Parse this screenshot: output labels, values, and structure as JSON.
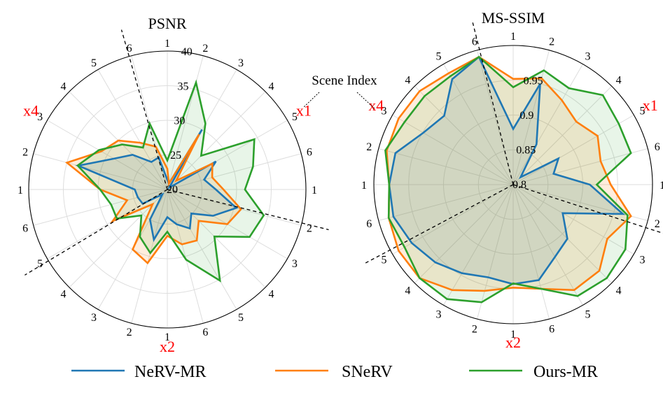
{
  "colors": {
    "nerv": "#1f77b4",
    "snerv": "#ff7f0e",
    "ours": "#2ca02c",
    "group_label": "#ff0000",
    "grid": "#dddddd",
    "axis": "#000000"
  },
  "legend": {
    "items": [
      {
        "name": "NeRV-MR",
        "color": "#1f77b4"
      },
      {
        "name": "SNeRV",
        "color": "#ff7f0e"
      },
      {
        "name": "Ours-MR",
        "color": "#2ca02c"
      }
    ]
  },
  "annotation": {
    "scene_index": "Scene Index"
  },
  "chart_data": [
    {
      "type": "radar",
      "title": "PSNR",
      "spoke_labels": [
        "1",
        "2",
        "3",
        "4",
        "5",
        "6",
        "1",
        "2",
        "3",
        "4",
        "5",
        "6",
        "1",
        "2",
        "3",
        "4",
        "5",
        "6",
        "1",
        "2",
        "3",
        "4",
        "5",
        "6"
      ],
      "group_labels": [
        "x1",
        "x2",
        "x4"
      ],
      "rlim": [
        20,
        40
      ],
      "rticks": [
        20,
        25,
        30,
        35,
        40
      ],
      "rtick_labels": [
        "20",
        "25",
        "30",
        "35",
        "40"
      ],
      "series": [
        {
          "name": "NeRV-MR",
          "values": [
            21.4,
            20.9,
            30.0,
            20.4,
            28.1,
            25.5,
            27.0,
            30.3,
            27.6,
            24.9,
            26.5,
            25.2,
            24.0,
            27.5,
            25.0,
            21.0,
            24.1,
            24.4,
            24.7,
            33.3,
            28.9,
            27.1,
            24.6,
            24.8
          ]
        },
        {
          "name": "SNeRV",
          "values": [
            23.0,
            20.9,
            29.2,
            21.8,
            27.5,
            26.7,
            28.1,
            31.0,
            30.0,
            26.4,
            28.5,
            28.2,
            26.7,
            31.0,
            30.0,
            23.0,
            29.1,
            26.0,
            29.7,
            35.0,
            31.0,
            30.0,
            27.8,
            26.4
          ]
        },
        {
          "name": "Ours-MR",
          "values": [
            24.2,
            36.0,
            31.0,
            26.9,
            34.5,
            32.8,
            31.2,
            34.4,
            33.7,
            29.6,
            35.2,
            30.5,
            26.1,
            29.5,
            27.9,
            25.3,
            28.4,
            28.4,
            29.7,
            33.4,
            31.4,
            29.2,
            27.0,
            29.9
          ]
        }
      ]
    },
    {
      "type": "radar",
      "title": "MS-SSIM",
      "spoke_labels": [
        "1",
        "2",
        "3",
        "4",
        "5",
        "6",
        "1",
        "2",
        "3",
        "4",
        "5",
        "6",
        "1",
        "2",
        "3",
        "4",
        "5",
        "6",
        "1",
        "2",
        "3",
        "4",
        "5",
        "6"
      ],
      "group_labels": [
        "x1",
        "x2",
        "x4"
      ],
      "rlim": [
        0.8,
        1.0
      ],
      "rticks": [
        0.8,
        0.85,
        0.9,
        0.95,
        1.0
      ],
      "rtick_labels": [
        "0.8",
        "0.85",
        "0.9",
        "0.95",
        ""
      ],
      "series": [
        {
          "name": "NeRV-MR",
          "values": [
            0.88,
            0.95,
            0.867,
            0.815,
            0.875,
            0.86,
            0.91,
            0.963,
            0.882,
            0.91,
            0.92,
            0.942,
            0.943,
            0.938,
            0.947,
            0.958,
            0.968,
            0.978,
            0.978,
            0.975,
            0.949,
            0.94,
            0.975,
            0.99
          ]
        },
        {
          "name": "SNeRV",
          "values": [
            0.952,
            0.958,
            0.94,
            0.928,
            0.94,
            0.93,
            0.94,
            0.975,
            0.956,
            0.975,
            0.975,
            0.955,
            0.948,
            0.958,
            0.975,
            0.99,
            0.99,
            0.985,
            0.978,
            0.988,
            0.99,
            0.99,
            0.985,
            0.99
          ]
        },
        {
          "name": "Ours-MR",
          "values": [
            0.94,
            0.97,
            0.96,
            0.982,
            0.975,
            0.975,
            0.92,
            0.97,
            0.986,
            0.99,
            0.985,
            0.955,
            0.942,
            0.975,
            0.99,
            0.99,
            0.98,
            0.985,
            0.978,
            0.99,
            0.98,
            0.98,
            0.98,
            0.99
          ]
        }
      ]
    }
  ]
}
